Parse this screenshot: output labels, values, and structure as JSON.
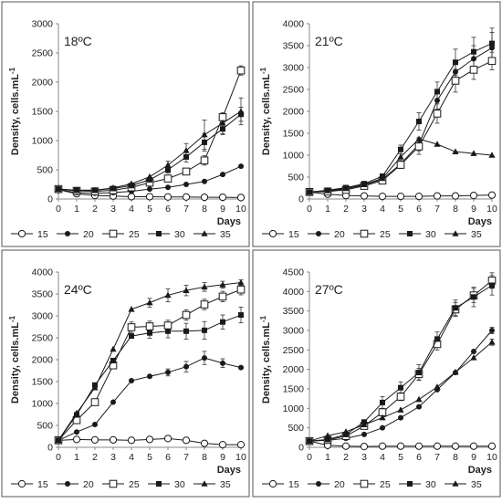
{
  "figure": {
    "x_axis_label": "Days",
    "y_axis_label": "Density, cells.mL",
    "y_axis_label_superscript": "-1",
    "legend_title": "",
    "legend_series": [
      "15",
      "20",
      "25",
      "30",
      "35"
    ]
  },
  "chart_data": [
    {
      "type": "line",
      "panel_label": "18ºC",
      "xlabel": "Days",
      "ylabel": "Density, cells.mL-1",
      "x": [
        0,
        1,
        2,
        3,
        4,
        5,
        6,
        7,
        8,
        9,
        10
      ],
      "xlim": [
        0,
        10
      ],
      "ylim": [
        0,
        3000
      ],
      "yticks": [
        0,
        500,
        1000,
        1500,
        2000,
        2500,
        3000
      ],
      "grid": false,
      "legend": "bottom",
      "series": [
        {
          "name": "15",
          "marker": "open-circle",
          "values": [
            160,
            90,
            60,
            50,
            40,
            40,
            35,
            35,
            30,
            30,
            25
          ]
        },
        {
          "name": "20",
          "marker": "filled-circle",
          "values": [
            160,
            110,
            100,
            110,
            130,
            170,
            200,
            250,
            300,
            420,
            560
          ]
        },
        {
          "name": "25",
          "marker": "open-square",
          "values": [
            170,
            140,
            130,
            150,
            200,
            280,
            350,
            470,
            660,
            1400,
            2200
          ]
        },
        {
          "name": "30",
          "marker": "filled-square",
          "values": [
            170,
            150,
            150,
            180,
            230,
            330,
            500,
            720,
            970,
            1200,
            1450
          ]
        },
        {
          "name": "35",
          "marker": "filled-triangle",
          "values": [
            170,
            150,
            150,
            190,
            260,
            380,
            580,
            830,
            1100,
            1300,
            1500
          ]
        }
      ],
      "errors": [
        {
          "name": "25",
          "values": [
            0,
            0,
            0,
            0,
            0,
            0,
            30,
            40,
            80,
            60,
            80
          ]
        },
        {
          "name": "30",
          "values": [
            0,
            0,
            0,
            0,
            0,
            0,
            60,
            90,
            150,
            100,
            120
          ]
        },
        {
          "name": "35",
          "values": [
            0,
            0,
            0,
            0,
            0,
            0,
            70,
            120,
            250,
            180,
            230
          ]
        }
      ]
    },
    {
      "type": "line",
      "panel_label": "21ºC",
      "xlabel": "Days",
      "ylabel": "Density, cells.mL-1",
      "x": [
        0,
        1,
        2,
        3,
        4,
        5,
        6,
        7,
        8,
        9,
        10
      ],
      "xlim": [
        0,
        10
      ],
      "ylim": [
        0,
        4000
      ],
      "yticks": [
        0,
        500,
        1000,
        1500,
        2000,
        2500,
        3000,
        3500,
        4000
      ],
      "grid": false,
      "legend": "bottom",
      "series": [
        {
          "name": "15",
          "marker": "open-circle",
          "values": [
            160,
            110,
            80,
            70,
            60,
            60,
            60,
            70,
            70,
            80,
            90
          ]
        },
        {
          "name": "20",
          "marker": "filled-circle",
          "values": [
            160,
            180,
            230,
            320,
            450,
            800,
            1250,
            2250,
            2900,
            3200,
            3450
          ]
        },
        {
          "name": "25",
          "marker": "open-square",
          "values": [
            160,
            170,
            210,
            300,
            420,
            780,
            1200,
            1950,
            2700,
            2950,
            3150
          ]
        },
        {
          "name": "30",
          "marker": "filled-square",
          "values": [
            160,
            200,
            260,
            350,
            520,
            1130,
            1770,
            2450,
            3120,
            3360,
            3550
          ]
        },
        {
          "name": "35",
          "marker": "filled-triangle",
          "values": [
            160,
            190,
            240,
            330,
            470,
            960,
            1370,
            1250,
            1080,
            1040,
            1000
          ]
        }
      ],
      "errors": [
        {
          "name": "20",
          "values": [
            0,
            0,
            0,
            0,
            0,
            80,
            150,
            200,
            250,
            300,
            350
          ]
        },
        {
          "name": "25",
          "values": [
            0,
            0,
            0,
            0,
            0,
            80,
            180,
            220,
            260,
            220,
            200
          ]
        },
        {
          "name": "30",
          "values": [
            0,
            0,
            0,
            0,
            0,
            100,
            200,
            220,
            300,
            330,
            350
          ]
        }
      ]
    },
    {
      "type": "line",
      "panel_label": "24ºC",
      "xlabel": "Days",
      "ylabel": "Density, cells.mL-1",
      "x": [
        0,
        1,
        2,
        3,
        4,
        5,
        6,
        7,
        8,
        9,
        10
      ],
      "xlim": [
        0,
        10
      ],
      "ylim": [
        0,
        4000
      ],
      "yticks": [
        0,
        500,
        1000,
        1500,
        2000,
        2500,
        3000,
        3500,
        4000
      ],
      "grid": false,
      "legend": "bottom",
      "series": [
        {
          "name": "15",
          "marker": "open-circle",
          "values": [
            160,
            180,
            170,
            170,
            160,
            180,
            200,
            160,
            90,
            60,
            60
          ]
        },
        {
          "name": "20",
          "marker": "filled-circle",
          "values": [
            160,
            350,
            520,
            1030,
            1520,
            1620,
            1710,
            1840,
            2040,
            1920,
            1820
          ]
        },
        {
          "name": "25",
          "marker": "open-square",
          "values": [
            160,
            620,
            1030,
            1870,
            2740,
            2760,
            2780,
            3020,
            3260,
            3440,
            3600
          ]
        },
        {
          "name": "30",
          "marker": "filled-square",
          "values": [
            160,
            740,
            1420,
            1980,
            2540,
            2610,
            2650,
            2650,
            2670,
            2860,
            3020
          ]
        },
        {
          "name": "35",
          "marker": "filled-triangle",
          "values": [
            160,
            780,
            1360,
            2240,
            3150,
            3300,
            3470,
            3580,
            3660,
            3710,
            3760
          ]
        }
      ],
      "errors": [
        {
          "name": "20",
          "values": [
            0,
            0,
            0,
            0,
            0,
            0,
            80,
            120,
            150,
            100,
            0
          ]
        },
        {
          "name": "25",
          "values": [
            0,
            0,
            0,
            0,
            120,
            120,
            120,
            120,
            120,
            120,
            120
          ]
        },
        {
          "name": "30",
          "values": [
            0,
            0,
            0,
            0,
            0,
            120,
            150,
            180,
            200,
            160,
            180
          ]
        },
        {
          "name": "35",
          "values": [
            0,
            0,
            0,
            0,
            0,
            100,
            150,
            120,
            100,
            80,
            60
          ]
        }
      ]
    },
    {
      "type": "line",
      "panel_label": "27ºC",
      "xlabel": "Days",
      "ylabel": "Density, cells.mL-1",
      "x": [
        0,
        1,
        2,
        3,
        4,
        5,
        6,
        7,
        8,
        9,
        10
      ],
      "xlim": [
        0,
        10
      ],
      "ylim": [
        0,
        4500
      ],
      "yticks": [
        0,
        500,
        1000,
        1500,
        2000,
        2500,
        3000,
        3500,
        4000,
        4500
      ],
      "grid": false,
      "legend": "bottom",
      "series": [
        {
          "name": "15",
          "marker": "open-circle",
          "values": [
            160,
            50,
            30,
            20,
            30,
            30,
            30,
            30,
            30,
            30,
            30
          ]
        },
        {
          "name": "20",
          "marker": "filled-circle",
          "values": [
            160,
            180,
            230,
            330,
            500,
            760,
            1040,
            1480,
            1920,
            2460,
            3000
          ]
        },
        {
          "name": "25",
          "marker": "open-square",
          "values": [
            160,
            190,
            290,
            550,
            900,
            1300,
            1880,
            2650,
            3540,
            3900,
            4280
          ]
        },
        {
          "name": "30",
          "marker": "filled-square",
          "values": [
            160,
            200,
            330,
            650,
            1150,
            1530,
            1920,
            2780,
            3580,
            3860,
            4160
          ]
        },
        {
          "name": "35",
          "marker": "filled-triangle",
          "values": [
            160,
            300,
            400,
            580,
            760,
            960,
            1230,
            1550,
            1930,
            2300,
            2700
          ]
        }
      ],
      "errors": [
        {
          "name": "20",
          "values": [
            0,
            0,
            0,
            0,
            0,
            0,
            0,
            0,
            0,
            0,
            80
          ]
        },
        {
          "name": "25",
          "values": [
            0,
            0,
            0,
            0,
            0,
            100,
            150,
            150,
            180,
            180,
            200
          ]
        },
        {
          "name": "30",
          "values": [
            0,
            0,
            0,
            0,
            150,
            150,
            200,
            180,
            200,
            250,
            250
          ]
        },
        {
          "name": "35",
          "values": [
            0,
            0,
            0,
            0,
            0,
            0,
            0,
            0,
            0,
            0,
            80
          ]
        }
      ]
    }
  ]
}
